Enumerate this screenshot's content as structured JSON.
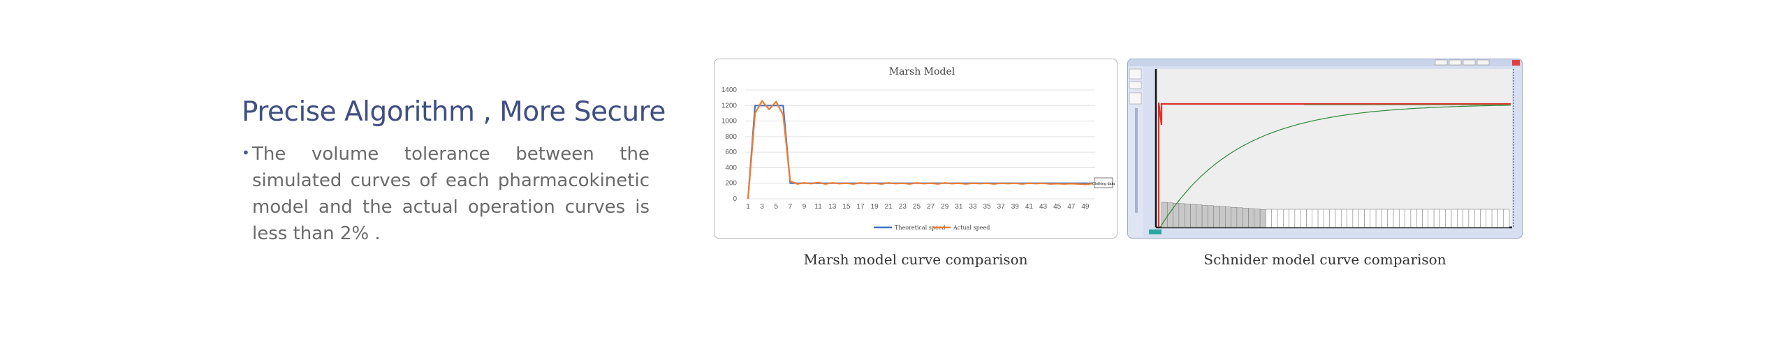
{
  "slide": {
    "headline": "Precise Algorithm , More Secure",
    "bullet_symbol": "•",
    "bullet": "The volume tolerance between the simulated curves of each pharmacokinetic model and the actual operation curves is less than 2% ."
  },
  "captions": {
    "marsh": "Marsh model curve comparison",
    "schnider": "Schnider model curve comparison"
  },
  "chart_data": [
    {
      "type": "line",
      "title": "Marsh Model",
      "xlabel": "",
      "ylabel": "",
      "ylim": [
        0,
        1400
      ],
      "yticks": [
        0,
        200,
        400,
        600,
        800,
        1000,
        1200,
        1400
      ],
      "x": [
        1,
        2,
        3,
        4,
        5,
        6,
        7,
        8,
        9,
        10,
        11,
        12,
        13,
        14,
        15,
        16,
        17,
        18,
        19,
        20,
        21,
        22,
        23,
        24,
        25,
        26,
        27,
        28,
        29,
        30,
        31,
        32,
        33,
        34,
        35,
        36,
        37,
        38,
        39,
        40,
        41,
        42,
        43,
        44,
        45,
        46,
        47,
        48,
        49,
        50
      ],
      "xtick_labels": [
        "1",
        "3",
        "5",
        "7",
        "9",
        "11",
        "13",
        "15",
        "17",
        "19",
        "21",
        "23",
        "25",
        "27",
        "29",
        "31",
        "33",
        "35",
        "37",
        "39",
        "41",
        "43",
        "45",
        "47",
        "49"
      ],
      "grid": true,
      "legend": "bottom",
      "series": [
        {
          "name": "Theoretical speed",
          "color": "#4472c4",
          "values": [
            0,
            1200,
            1200,
            1200,
            1200,
            1200,
            200,
            200,
            200,
            200,
            200,
            200,
            200,
            200,
            200,
            200,
            200,
            200,
            200,
            200,
            200,
            200,
            200,
            200,
            200,
            200,
            200,
            200,
            200,
            200,
            200,
            200,
            200,
            200,
            200,
            200,
            200,
            200,
            200,
            200,
            200,
            200,
            200,
            200,
            200,
            200,
            200,
            200,
            200,
            200
          ]
        },
        {
          "name": "Actual speed",
          "color": "#ed7d31",
          "values": [
            0,
            1100,
            1260,
            1150,
            1250,
            1080,
            230,
            190,
            205,
            195,
            210,
            190,
            205,
            195,
            200,
            190,
            205,
            195,
            200,
            190,
            205,
            195,
            200,
            190,
            205,
            195,
            200,
            190,
            205,
            195,
            200,
            190,
            200,
            195,
            200,
            190,
            200,
            195,
            200,
            190,
            200,
            195,
            200,
            190,
            195,
            190,
            195,
            190,
            185,
            195
          ]
        }
      ],
      "annotations": [
        "Clothing data"
      ]
    },
    {
      "type": "line",
      "title": "",
      "series": [
        {
          "name": "",
          "color": "#2e8b3a",
          "shape": "rising exponential approaching plateau"
        },
        {
          "name": "",
          "color": "#e03030",
          "shape": "flat plateau after initial spike"
        }
      ],
      "toolbar_buttons": [
        "",
        "",
        "",
        ""
      ]
    }
  ]
}
